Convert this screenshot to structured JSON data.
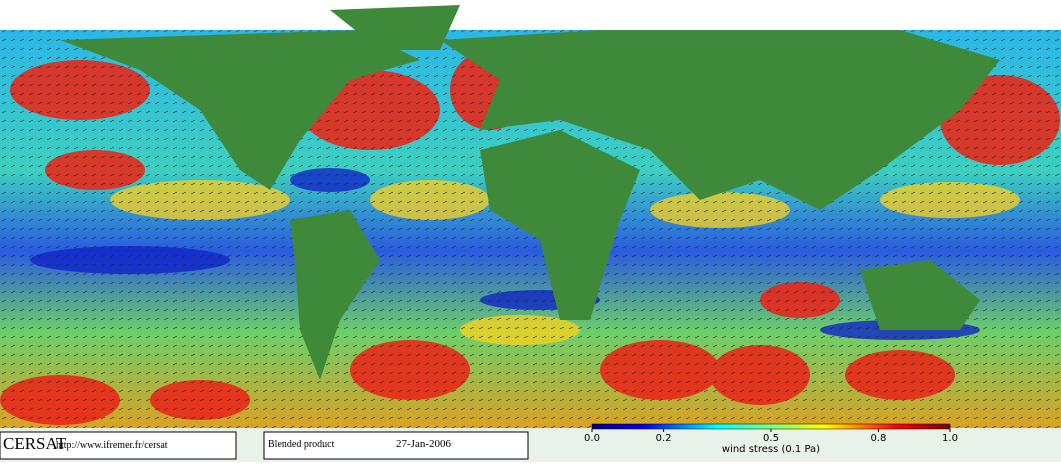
{
  "footer": {
    "logo": "CERSAT",
    "url": "http://www.ifremer.fr/cersat",
    "product": "Blended product",
    "date": "27-Jan-2006"
  },
  "colorbar": {
    "range": [
      0,
      1
    ],
    "ticks": [
      {
        "value": 0,
        "label": "0.0"
      },
      0.2,
      0.5,
      0.8,
      {
        "value": 1,
        "label": "1.0"
      }
    ],
    "label": "wind stress (0.1 Pa)"
  }
}
